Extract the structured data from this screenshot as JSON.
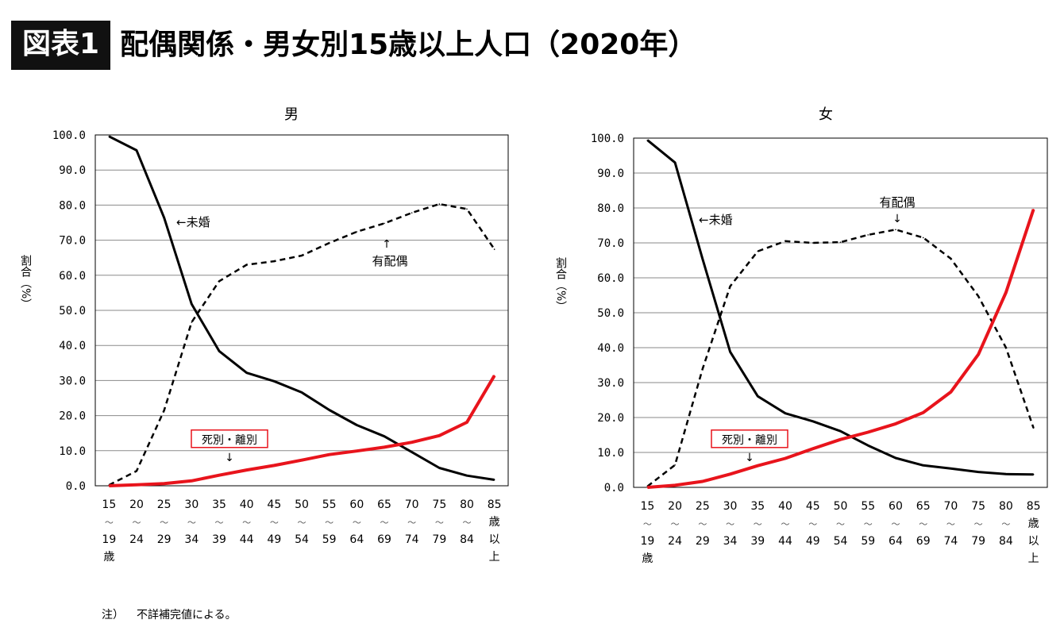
{
  "header": {
    "badge": "図表1",
    "title": "配偶関係・男女別15歳以上人口（2020年）"
  },
  "note": {
    "label": "注）",
    "text": "不詳補完値による。"
  },
  "colors": {
    "unmarried": "#000000",
    "married": "#000000",
    "widowed_divorced": "#e8141c"
  },
  "chart_data": [
    {
      "type": "line",
      "title": "男",
      "ylabel": "割合（%）",
      "ylim": [
        0,
        100
      ],
      "yticks": [
        "0.0",
        "10.0",
        "20.0",
        "30.0",
        "40.0",
        "50.0",
        "60.0",
        "70.0",
        "80.0",
        "90.0",
        "100.0"
      ],
      "grid": true,
      "categories": [
        [
          "15",
          "〜",
          "19",
          "歳"
        ],
        [
          "20",
          "〜",
          "24"
        ],
        [
          "25",
          "〜",
          "29"
        ],
        [
          "30",
          "〜",
          "34"
        ],
        [
          "35",
          "〜",
          "39"
        ],
        [
          "40",
          "〜",
          "44"
        ],
        [
          "45",
          "〜",
          "49"
        ],
        [
          "50",
          "〜",
          "54"
        ],
        [
          "55",
          "〜",
          "59"
        ],
        [
          "60",
          "〜",
          "64"
        ],
        [
          "65",
          "〜",
          "69"
        ],
        [
          "70",
          "〜",
          "74"
        ],
        [
          "75",
          "〜",
          "79"
        ],
        [
          "80",
          "〜",
          "84"
        ],
        [
          "85",
          "歳",
          "以",
          "上"
        ]
      ],
      "series": [
        {
          "name": "未婚",
          "style": "solid",
          "color": "#000000",
          "values": [
            99.6,
            95.6,
            76.4,
            51.8,
            38.4,
            32.2,
            29.8,
            26.6,
            21.6,
            17.3,
            14.1,
            9.6,
            5.1,
            2.9,
            1.7
          ]
        },
        {
          "name": "有配偶",
          "style": "dashed",
          "color": "#000000",
          "values": [
            0.2,
            4.2,
            21.5,
            46.6,
            58.3,
            63.0,
            64.0,
            65.6,
            69.2,
            72.4,
            74.8,
            77.8,
            80.3,
            78.9,
            67.4
          ]
        },
        {
          "name": "死別・離別",
          "style": "solid-thick",
          "color": "#e8141c",
          "values": [
            0.0,
            0.3,
            0.6,
            1.4,
            3.0,
            4.5,
            5.8,
            7.3,
            8.9,
            9.9,
            11.0,
            12.4,
            14.3,
            18.1,
            31.4
          ]
        }
      ],
      "annotations": [
        "←未婚",
        "有配偶",
        "死別・離別"
      ]
    },
    {
      "type": "line",
      "title": "女",
      "ylabel": "割合（%）",
      "ylim": [
        0,
        100
      ],
      "yticks": [
        "0.0",
        "10.0",
        "20.0",
        "30.0",
        "40.0",
        "50.0",
        "60.0",
        "70.0",
        "80.0",
        "90.0",
        "100.0"
      ],
      "grid": true,
      "categories": [
        [
          "15",
          "〜",
          "19",
          "歳"
        ],
        [
          "20",
          "〜",
          "24"
        ],
        [
          "25",
          "〜",
          "29"
        ],
        [
          "30",
          "〜",
          "34"
        ],
        [
          "35",
          "〜",
          "39"
        ],
        [
          "40",
          "〜",
          "44"
        ],
        [
          "45",
          "〜",
          "49"
        ],
        [
          "50",
          "〜",
          "54"
        ],
        [
          "55",
          "〜",
          "59"
        ],
        [
          "60",
          "〜",
          "64"
        ],
        [
          "65",
          "〜",
          "69"
        ],
        [
          "70",
          "〜",
          "74"
        ],
        [
          "75",
          "〜",
          "79"
        ],
        [
          "80",
          "〜",
          "84"
        ],
        [
          "85",
          "歳",
          "以",
          "上"
        ]
      ],
      "series": [
        {
          "name": "未婚",
          "style": "solid",
          "color": "#000000",
          "values": [
            99.4,
            93.0,
            65.4,
            38.8,
            26.1,
            21.2,
            18.9,
            16.1,
            12.0,
            8.4,
            6.3,
            5.4,
            4.4,
            3.8,
            3.7
          ]
        },
        {
          "name": "有配偶",
          "style": "dashed",
          "color": "#000000",
          "values": [
            0.3,
            6.4,
            33.9,
            57.6,
            67.6,
            70.5,
            70.0,
            70.2,
            72.3,
            73.8,
            71.5,
            65.5,
            54.7,
            40.0,
            17.0
          ]
        },
        {
          "name": "死別・離別",
          "style": "solid-thick",
          "color": "#e8141c",
          "values": [
            0.0,
            0.6,
            1.7,
            3.8,
            6.2,
            8.3,
            11.1,
            13.7,
            15.8,
            18.2,
            21.4,
            27.3,
            38.1,
            55.8,
            79.6
          ]
        }
      ],
      "annotations": [
        "←未婚",
        "有配偶",
        "死別・離別"
      ]
    }
  ]
}
